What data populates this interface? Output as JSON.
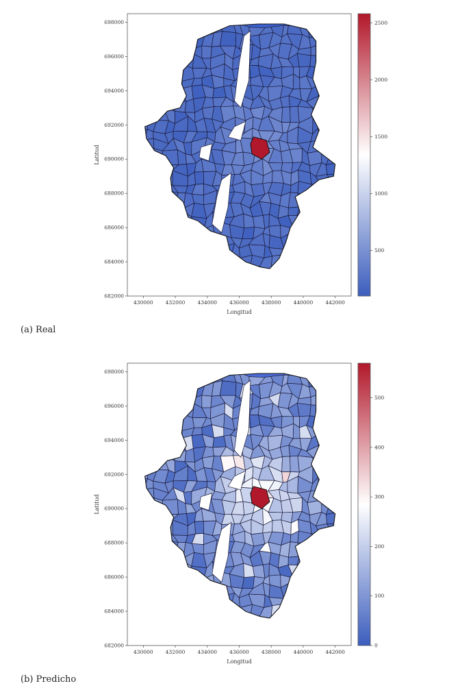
{
  "chart_data": [
    {
      "type": "choropleth-map",
      "caption": "(a) Real",
      "xlabel": "Longitud",
      "ylabel": "Latitud",
      "xlim": [
        429000,
        443000
      ],
      "ylim": [
        682000,
        698500
      ],
      "x_ticks": [
        "430000",
        "432000",
        "434000",
        "436000",
        "438000",
        "440000",
        "442000"
      ],
      "y_ticks": [
        "682000",
        "684000",
        "686000",
        "688000",
        "690000",
        "692000",
        "694000",
        "696000",
        "698000"
      ],
      "colorbar": {
        "min": 100,
        "max": 2580,
        "ticks": [
          "500",
          "1000",
          "1500",
          "2000",
          "2500"
        ],
        "colors": [
          "#3b5dbd",
          "#ffffff",
          "#b2182b"
        ]
      },
      "highlights": [
        {
          "area": "center",
          "value": 2500,
          "color": "#b2182b"
        }
      ],
      "base_color": "#3b5fcd"
    },
    {
      "type": "choropleth-map",
      "caption": "(b) Predicho",
      "xlabel": "Longitud",
      "ylabel": "Latitud",
      "xlim": [
        429000,
        443000
      ],
      "ylim": [
        682000,
        698500
      ],
      "x_ticks": [
        "430000",
        "432000",
        "434000",
        "436000",
        "438000",
        "440000",
        "442000"
      ],
      "y_ticks": [
        "682000",
        "684000",
        "686000",
        "688000",
        "690000",
        "692000",
        "694000",
        "696000",
        "698000"
      ],
      "colorbar": {
        "min": 0,
        "max": 570,
        "ticks": [
          "0",
          "100",
          "200",
          "300",
          "400",
          "500"
        ],
        "colors": [
          "#3b5dbd",
          "#ffffff",
          "#b2182b"
        ]
      },
      "highlights": [
        {
          "area": "center",
          "value": 560,
          "color": "#b2182b"
        }
      ],
      "base_color": "#4a6ad4"
    }
  ]
}
